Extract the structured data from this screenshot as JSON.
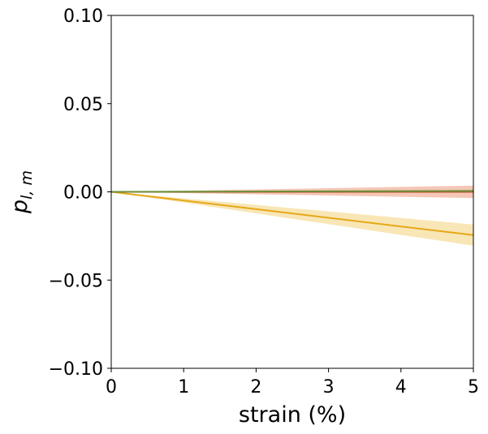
{
  "chart_data": {
    "type": "line",
    "title": "",
    "xlabel": "strain (%)",
    "ylabel": {
      "base": "p",
      "subscript": "l, m"
    },
    "xlim": [
      0,
      5
    ],
    "ylim": [
      -0.1,
      0.1
    ],
    "x_ticks": [
      0,
      1,
      2,
      3,
      4,
      5
    ],
    "x_tick_labels": [
      "0",
      "1",
      "2",
      "3",
      "4",
      "5"
    ],
    "y_ticks": [
      0.1,
      0.05,
      0.0,
      -0.05,
      -0.1
    ],
    "y_tick_labels": [
      "0.10",
      "0.05",
      "0.00",
      "−0.05",
      "−0.10"
    ],
    "grid": false,
    "legend": "none",
    "series": [
      {
        "color": "#e6a817",
        "band_color": "#f0c75e",
        "x": [
          0,
          5
        ],
        "y": [
          0.0,
          -0.0245
        ],
        "band_lower": [
          0.0,
          -0.0305
        ],
        "band_upper": [
          0.0,
          -0.0185
        ]
      },
      {
        "color": "#c1542a",
        "band_color": "#e8825e",
        "x": [
          0,
          5
        ],
        "y": [
          0.0,
          0.0
        ],
        "band_lower": [
          0.0,
          -0.0035
        ],
        "band_upper": [
          0.0,
          0.0035
        ]
      },
      {
        "color": "#6b8e3a",
        "band_color": "#8fb36a",
        "x": [
          0,
          5
        ],
        "y": [
          0.0,
          0.0005
        ],
        "band_lower": [
          0.0,
          0.0
        ],
        "band_upper": [
          0.0,
          0.001
        ]
      }
    ]
  }
}
